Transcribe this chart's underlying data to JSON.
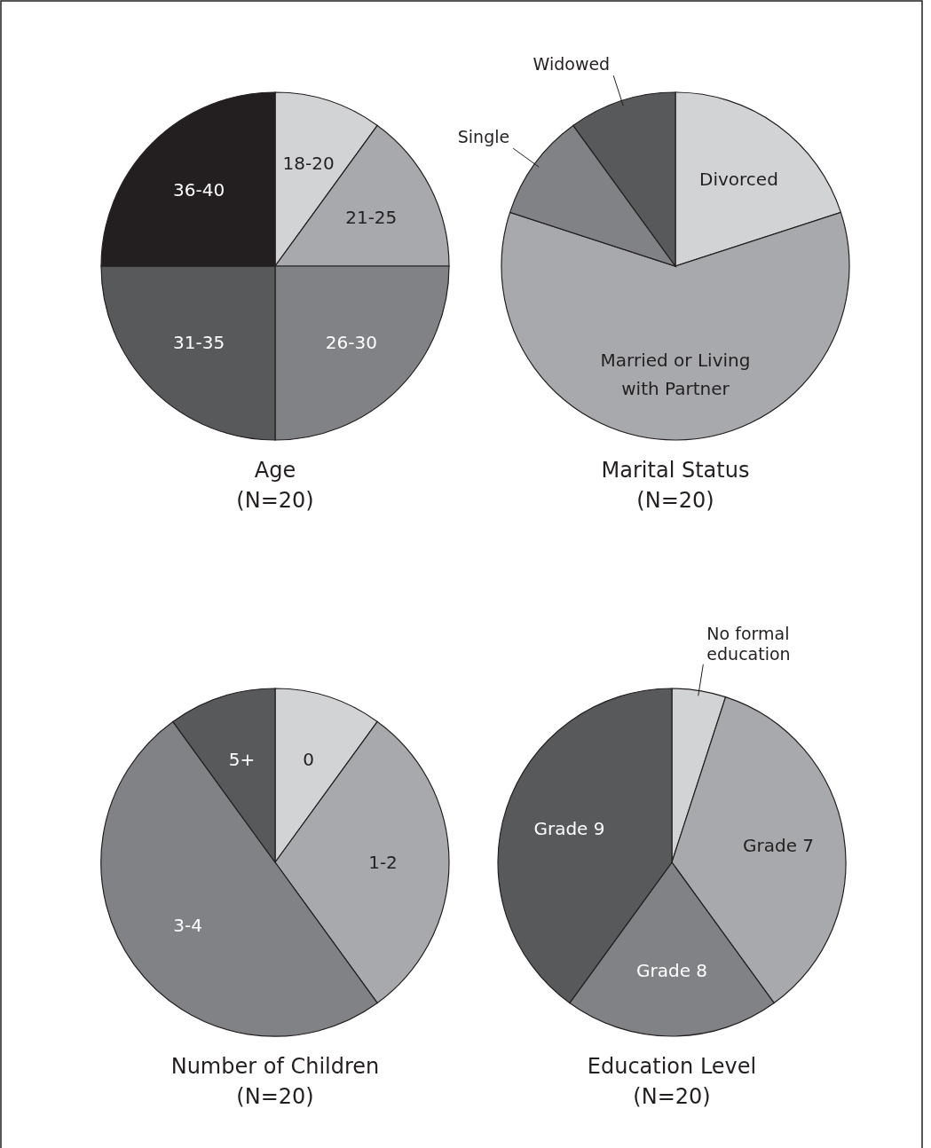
{
  "chart_data": [
    {
      "type": "pie",
      "title": "Age",
      "subtitle": "(N=20)",
      "categories": [
        "18-20",
        "21-25",
        "26-30",
        "31-35",
        "36-40"
      ],
      "values": [
        10,
        15,
        25,
        25,
        25
      ],
      "colors": [
        "#d1d3d4",
        "#a7a9ac",
        "#808285",
        "#58595b",
        "#231f20"
      ]
    },
    {
      "type": "pie",
      "title": "Marital Status",
      "subtitle": "(N=20)",
      "categories": [
        "Divorced",
        "Married or Living with Partner",
        "Single",
        "Widowed"
      ],
      "values": [
        20,
        60,
        10,
        10
      ],
      "colors": [
        "#d1d3d4",
        "#a7a9ac",
        "#808285",
        "#58595b"
      ]
    },
    {
      "type": "pie",
      "title": "Number of Children",
      "subtitle": "(N=20)",
      "categories": [
        "0",
        "1-2",
        "3-4",
        "5+"
      ],
      "values": [
        10,
        30,
        50,
        10
      ],
      "colors": [
        "#d1d3d4",
        "#a7a9ac",
        "#808285",
        "#58595b"
      ]
    },
    {
      "type": "pie",
      "title": "Education Level",
      "subtitle": "(N=20)",
      "categories": [
        "No formal education",
        "Grade 7",
        "Grade 8",
        "Grade 9"
      ],
      "values": [
        5,
        35,
        20,
        40
      ],
      "colors": [
        "#d1d3d4",
        "#a7a9ac",
        "#808285",
        "#58595b"
      ]
    }
  ]
}
